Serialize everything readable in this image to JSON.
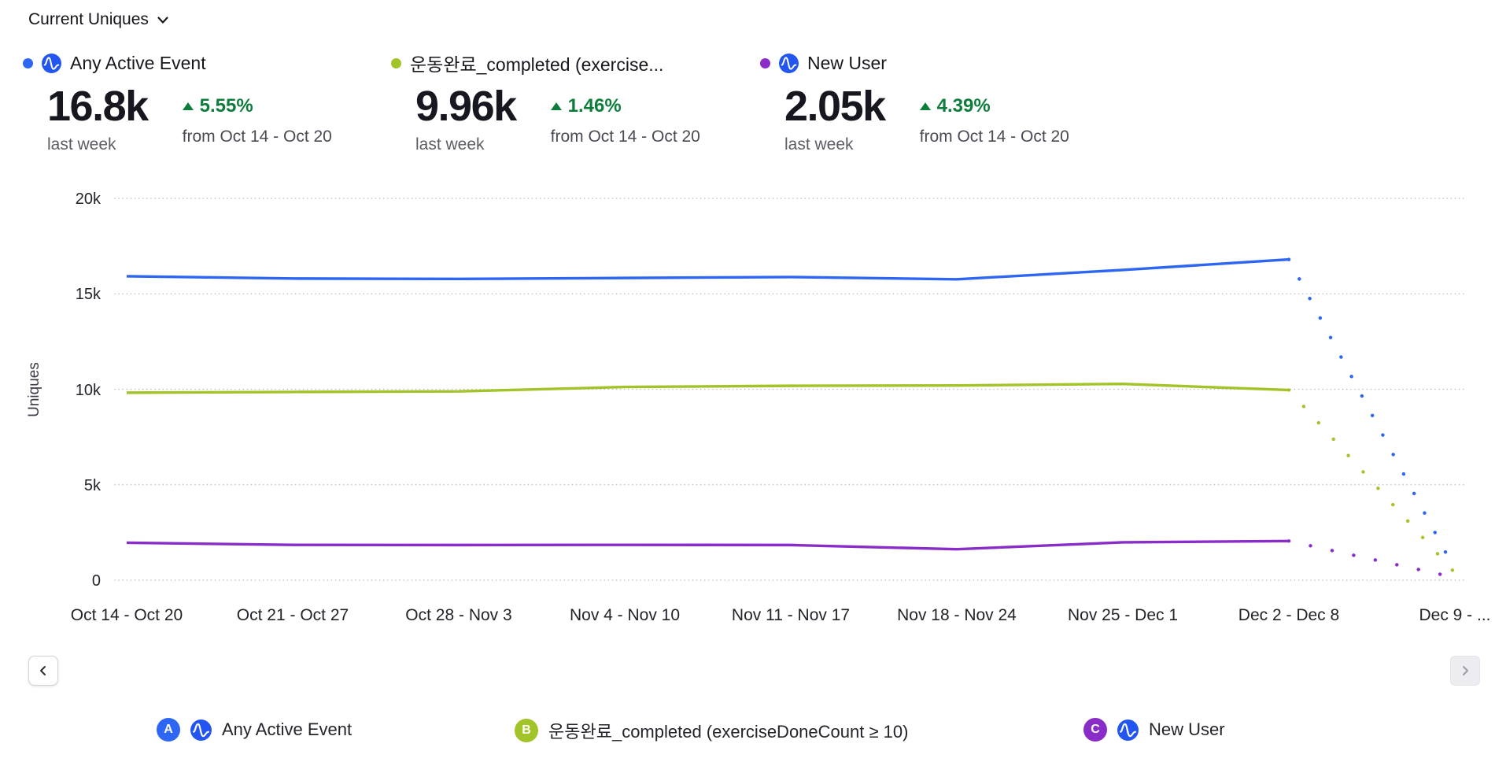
{
  "header": {
    "title": "Current Uniques"
  },
  "metrics": [
    {
      "name": "Any Active Event",
      "value": "16.8k",
      "delta": "5.55%",
      "delta_direction": "up",
      "delta_color": "#0e7d3c",
      "period": "last week",
      "compare": "from Oct 14 - Oct 20",
      "color": "#2c66f2",
      "has_amplitude_icon": true
    },
    {
      "name": "운동완료_completed (exercise...",
      "value": "9.96k",
      "delta": "1.46%",
      "delta_direction": "up",
      "delta_color": "#0e7d3c",
      "period": "last week",
      "compare": "from Oct 14 - Oct 20",
      "color": "#a2c428",
      "has_amplitude_icon": false
    },
    {
      "name": "New User",
      "value": "2.05k",
      "delta": "4.39%",
      "delta_direction": "up",
      "delta_color": "#0e7d3c",
      "period": "last week",
      "compare": "from Oct 14 - Oct 20",
      "color": "#8a2dc8",
      "has_amplitude_icon": true
    }
  ],
  "chart_data": {
    "type": "line",
    "title": "Current Uniques",
    "ylabel": "Uniques",
    "ylim": [
      0,
      20000
    ],
    "yticks": [
      0,
      5000,
      10000,
      15000,
      20000
    ],
    "ytick_labels": [
      "0",
      "5k",
      "10k",
      "15k",
      "20k"
    ],
    "categories": [
      "Oct 14 - Oct 20",
      "Oct 21 - Oct 27",
      "Oct 28 - Nov 3",
      "Nov 4 - Nov 10",
      "Nov 11 - Nov 17",
      "Nov 18 - Nov 24",
      "Nov 25 - Dec 1",
      "Dec 2 - Dec 8",
      "Dec 9 - ..."
    ],
    "grid": "dotted-horizontal",
    "legend_position": "bottom",
    "incomplete_from_index": 7,
    "series": [
      {
        "name": "Any Active Event",
        "color": "#2c66f2",
        "values": [
          15920,
          15800,
          15780,
          15830,
          15880,
          15760,
          16250,
          16800,
          550
        ]
      },
      {
        "name": "운동완료_completed (exerciseDoneCount ≥ 10)",
        "color": "#a2c428",
        "values": [
          9820,
          9860,
          9890,
          10120,
          10180,
          10200,
          10280,
          9960,
          380
        ]
      },
      {
        "name": "New User",
        "color": "#8a2dc8",
        "values": [
          1960,
          1850,
          1840,
          1850,
          1840,
          1620,
          1980,
          2050,
          140
        ]
      }
    ]
  },
  "icons": {
    "selector": "chevron-down-icon",
    "event_badge": "amplitude-logo-icon",
    "prev": "chevron-left-icon",
    "next": "chevron-right-icon",
    "delta": "arrow-up-icon"
  },
  "legend": [
    {
      "letter": "A",
      "label": "Any Active Event",
      "color": "#2c66f2",
      "has_amplitude_icon": true
    },
    {
      "letter": "B",
      "label": "운동완료_completed (exerciseDoneCount ≥ 10)",
      "color": "#a2c428",
      "has_amplitude_icon": false
    },
    {
      "letter": "C",
      "label": "New User",
      "color": "#8a2dc8",
      "has_amplitude_icon": true
    }
  ]
}
